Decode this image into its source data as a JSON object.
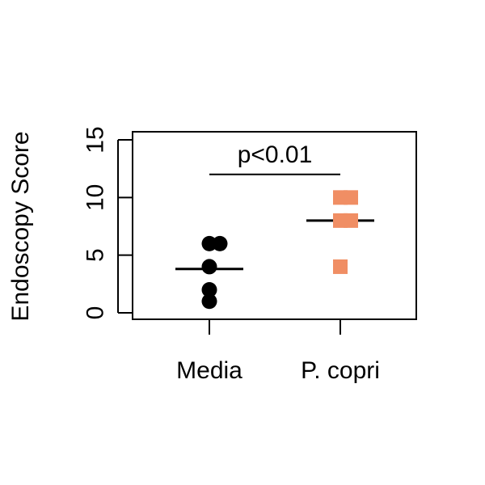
{
  "chart_data": {
    "type": "scatter",
    "title": "",
    "xlabel": "",
    "ylabel": "Endoscopy Score",
    "categories": [
      "Media",
      "P. copri"
    ],
    "ylim": [
      -1.5,
      15.5
    ],
    "yticks": [
      0,
      5,
      10,
      15
    ],
    "grid": false,
    "legend": "none",
    "series": [
      {
        "category": "Media",
        "marker": "circle",
        "color": "#000000",
        "points": [
          {
            "offset": -0.1,
            "y": 1
          },
          {
            "offset": -0.1,
            "y": 2
          },
          {
            "offset": -0.1,
            "y": 4
          },
          {
            "offset": -0.1,
            "y": 6
          },
          {
            "offset": 0.2,
            "y": 6
          }
        ],
        "mean": 3.8
      },
      {
        "category": "P. copri",
        "marker": "square",
        "color": "#F08E64",
        "points": [
          {
            "offset": -0.1,
            "y": 4
          },
          {
            "offset": -0.1,
            "y": 8
          },
          {
            "offset": 0.2,
            "y": 8
          },
          {
            "offset": -0.1,
            "y": 10
          },
          {
            "offset": 0.2,
            "y": 10
          }
        ],
        "mean": 8
      }
    ],
    "annotation": {
      "text": "p<0.01",
      "bracket_y": 12,
      "from": "Media",
      "to": "P. copri"
    }
  }
}
